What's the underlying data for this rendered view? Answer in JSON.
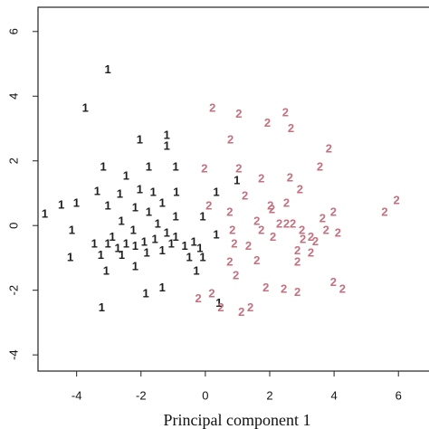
{
  "chart_data": {
    "type": "scatter",
    "x_label": "Principal component 1",
    "xlim": [
      -5.2,
      6.95
    ],
    "ylim": [
      -4.5,
      6.75
    ],
    "xticks": [
      -4,
      -2,
      0,
      2,
      4,
      6
    ],
    "yticks": [
      -4,
      -2,
      0,
      2,
      4,
      6
    ],
    "series": [
      {
        "name": "1",
        "color": "#1e1e1e",
        "x": [
          -3.03,
          -3.73,
          -2.04,
          -1.2,
          -1.2,
          -3.17,
          -1.76,
          -0.92,
          -2.46,
          -3.36,
          -2.66,
          -2.04,
          -1.62,
          -0.9,
          0.34,
          0.98,
          -4.99,
          -4.48,
          -4.01,
          -3.03,
          -2.18,
          -1.76,
          -1.34,
          -0.92,
          -0.08,
          -4.15,
          -2.61,
          -2.24,
          -1.48,
          -1.2,
          -3.45,
          -3.03,
          -2.89,
          -2.46,
          -2.18,
          -1.9,
          -1.57,
          -1.06,
          -0.64,
          -0.36,
          -0.17,
          0.34,
          -4.2,
          -3.25,
          -2.6,
          -1.82,
          -1.34,
          -0.5,
          -0.08,
          -3.08,
          -2.18,
          -0.28,
          -1.34,
          -1.85,
          0.42,
          -3.22,
          -2.72,
          -0.92
        ],
        "values": [
          4.8,
          3.62,
          2.64,
          2.78,
          2.44,
          1.8,
          1.8,
          1.8,
          1.52,
          1.04,
          0.96,
          1.1,
          1.01,
          1.01,
          1.01,
          1.38,
          0.34,
          0.62,
          0.67,
          0.59,
          0.53,
          0.39,
          0.67,
          0.25,
          0.25,
          -0.17,
          0.11,
          -0.17,
          0.03,
          -0.25,
          -0.59,
          -0.59,
          -0.37,
          -0.59,
          -0.65,
          -0.53,
          -0.45,
          -0.59,
          -0.65,
          -0.53,
          -0.73,
          -0.31,
          -1.01,
          -0.93,
          -0.93,
          -0.87,
          -0.79,
          -1.01,
          -1.01,
          -1.43,
          -1.29,
          -1.43,
          -1.94,
          -2.13,
          -2.42,
          -2.56,
          -0.73,
          -0.37
        ]
      },
      {
        "name": "2",
        "color": "#c4707e",
        "x": [
          0.22,
          1.04,
          2.49,
          1.93,
          2.66,
          0.78,
          3.84,
          -0.03,
          1.04,
          3.56,
          1.74,
          2.63,
          0.11,
          1.23,
          2.02,
          2.52,
          2.94,
          0.76,
          1.6,
          2.07,
          2.3,
          2.52,
          2.72,
          3.64,
          3.98,
          5.94,
          5.57,
          0.84,
          1.74,
          2.1,
          3.0,
          3.75,
          4.12,
          0.9,
          1.34,
          3.03,
          3.28,
          2.86,
          3.42,
          0.76,
          1.6,
          2.86,
          3.28,
          0.95,
          0.2,
          -0.22,
          1.88,
          2.44,
          2.86,
          3.98,
          4.26,
          1.12,
          1.4,
          0.48
        ],
        "values": [
          3.62,
          3.43,
          3.48,
          3.15,
          2.98,
          2.64,
          2.36,
          1.74,
          1.74,
          1.8,
          1.43,
          1.46,
          0.59,
          0.9,
          0.59,
          0.67,
          1.1,
          0.39,
          0.11,
          0.48,
          0.03,
          0.03,
          0.03,
          0.2,
          0.39,
          0.76,
          0.39,
          -0.17,
          -0.17,
          -0.37,
          -0.17,
          -0.17,
          -0.25,
          -0.59,
          -0.65,
          -0.45,
          -0.37,
          -0.79,
          -0.51,
          -1.15,
          -1.1,
          -1.15,
          -0.87,
          -1.57,
          -2.13,
          -2.28,
          -1.94,
          -1.99,
          -2.08,
          -1.77,
          -1.99,
          -2.7,
          -2.56,
          -2.56
        ]
      }
    ]
  }
}
